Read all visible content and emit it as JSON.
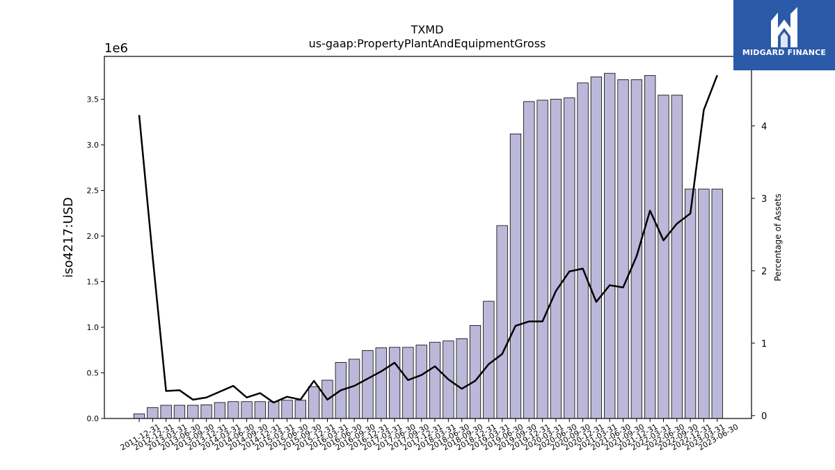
{
  "brand": {
    "name": "MIDGARD FINANCE",
    "color": "#2a5aa8"
  },
  "chart_data": {
    "type": "bar",
    "title": "TXMD",
    "subtitle": "us-gaap:PropertyPlantAndEquipmentGross",
    "ylabel": "iso4217:USD",
    "y_scale_label": "1e6",
    "y2label": "Percentage of Assets",
    "ylim": [
      0,
      3.97
    ],
    "y2lim": [
      -0.04,
      4.96
    ],
    "yticks": [
      "0.0",
      "0.5",
      "1.0",
      "1.5",
      "2.0",
      "2.5",
      "3.0",
      "3.5"
    ],
    "y2ticks": [
      "0",
      "1",
      "2",
      "3",
      "4"
    ],
    "bar_color": "#bcb8d9",
    "line_color": "#000000",
    "categories": [
      "2011-12-31",
      "2012-12-31",
      "2013-03-31",
      "2013-06-30",
      "2013-09-30",
      "2013-12-31",
      "2014-03-31",
      "2014-06-30",
      "2014-09-30",
      "2014-12-31",
      "2015-03-31",
      "2015-06-30",
      "2015-09-30",
      "2015-12-31",
      "2016-03-31",
      "2016-06-30",
      "2016-09-30",
      "2016-12-31",
      "2017-03-31",
      "2017-06-30",
      "2017-09-30",
      "2017-12-31",
      "2018-03-31",
      "2018-06-30",
      "2018-09-30",
      "2018-12-31",
      "2019-03-31",
      "2019-06-30",
      "2019-09-30",
      "2019-12-31",
      "2020-03-31",
      "2020-06-30",
      "2020-09-30",
      "2020-12-31",
      "2021-03-31",
      "2021-06-30",
      "2021-09-30",
      "2021-12-31",
      "2022-03-31",
      "2022-06-30",
      "2022-09-30",
      "2022-12-31",
      "2023-03-31",
      "2023-06-30"
    ],
    "series": [
      {
        "values": [
          0.05,
          0.12,
          0.145,
          0.145,
          0.145,
          0.15,
          0.175,
          0.185,
          0.185,
          0.185,
          0.185,
          0.2,
          0.2,
          0.35,
          0.42,
          0.615,
          0.65,
          0.745,
          0.775,
          0.78,
          0.78,
          0.805,
          0.835,
          0.85,
          0.875,
          1.02,
          1.285,
          2.115,
          3.12,
          3.475,
          3.49,
          3.5,
          3.515,
          3.68,
          3.745,
          3.785,
          3.715,
          3.715,
          3.76,
          3.545,
          3.545,
          2.515,
          2.515,
          2.515
        ]
      },
      {
        "axis": "right",
        "values": [
          4.15,
          2.2,
          0.34,
          0.35,
          0.22,
          0.25,
          0.33,
          0.41,
          0.25,
          0.31,
          0.18,
          0.26,
          0.22,
          0.48,
          0.22,
          0.35,
          0.41,
          0.51,
          0.61,
          0.73,
          0.49,
          0.56,
          0.68,
          0.5,
          0.37,
          0.48,
          0.71,
          0.85,
          1.24,
          1.3,
          1.3,
          1.72,
          1.99,
          2.03,
          1.57,
          1.8,
          1.77,
          2.2,
          2.83,
          2.42,
          2.65,
          2.79,
          4.22,
          4.7
        ]
      }
    ]
  }
}
